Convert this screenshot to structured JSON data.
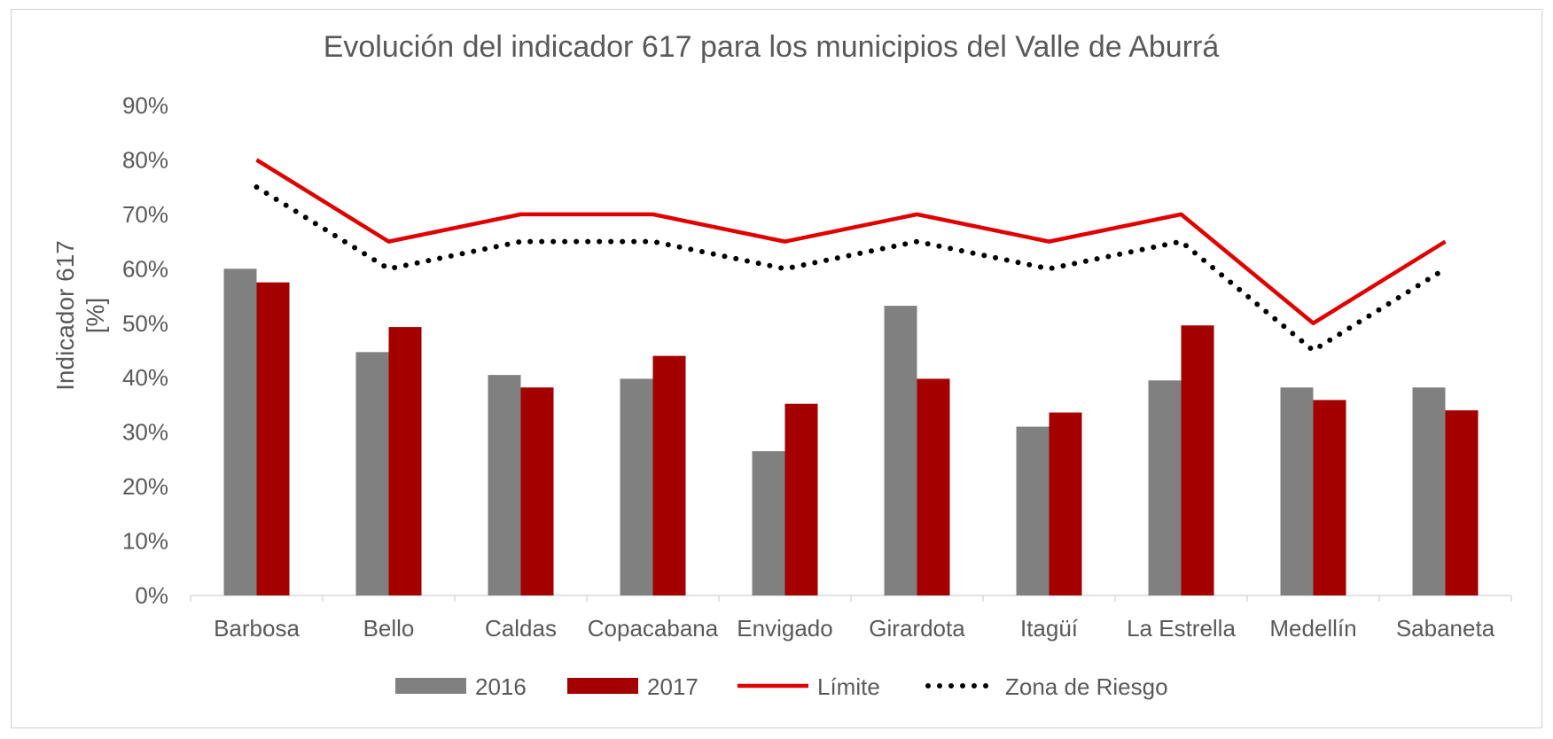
{
  "chart_data": {
    "type": "bar",
    "title": "Evolución del indicador 617 para los municipios del Valle de Aburrá",
    "ylabel": [
      "Indicador 617",
      "[%]"
    ],
    "xlabel": "",
    "ylim": [
      0,
      90
    ],
    "yticks": [
      0,
      10,
      20,
      30,
      40,
      50,
      60,
      70,
      80,
      90
    ],
    "ytick_labels": [
      "0%",
      "10%",
      "20%",
      "30%",
      "40%",
      "50%",
      "60%",
      "70%",
      "80%",
      "90%"
    ],
    "grid": false,
    "legend_position": "bottom",
    "categories": [
      "Barbosa",
      "Bello",
      "Caldas",
      "Copacabana",
      "Envigado",
      "Girardota",
      "Itagüí",
      "La Estrella",
      "Medellín",
      "Sabaneta"
    ],
    "series": [
      {
        "name": "2016",
        "kind": "bar",
        "color": "#808080",
        "values": [
          60,
          44.7,
          40.5,
          39.8,
          26.5,
          53.2,
          31,
          39.5,
          38.2,
          38.2
        ]
      },
      {
        "name": "2017",
        "kind": "bar",
        "color": "#a50000",
        "values": [
          57.5,
          49.3,
          38.2,
          44,
          35.2,
          39.8,
          33.6,
          49.6,
          35.9,
          34
        ]
      },
      {
        "name": "Límite",
        "kind": "line",
        "style": "solid",
        "color": "#e00000",
        "values": [
          80,
          65,
          70,
          70,
          65,
          70,
          65,
          70,
          50,
          65
        ]
      },
      {
        "name": "Zona de Riesgo",
        "kind": "line",
        "style": "dotted",
        "color": "#000000",
        "values": [
          75,
          60,
          65,
          65,
          60,
          65,
          60,
          65,
          45,
          60
        ]
      }
    ]
  }
}
